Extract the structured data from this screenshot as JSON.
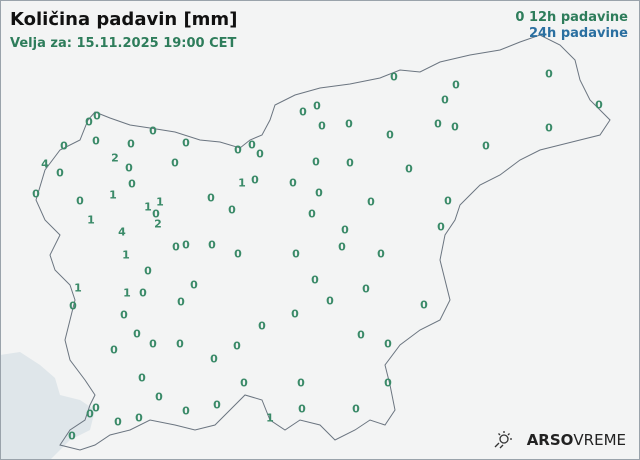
{
  "header": {
    "title": "Količina padavin [mm]",
    "valid_for": "Velja za: 15.11.2025 19:00 CET"
  },
  "legend": {
    "marker": "0",
    "item_12h": "12h padavine",
    "item_24h": "24h padavine",
    "color_12h": "#2e7d5b",
    "color_24h": "#2a6fa0"
  },
  "stations": [
    "0",
    "0",
    "0",
    "0",
    "0",
    "0",
    "0",
    "2",
    "4",
    "0",
    "0",
    "0",
    "0",
    "0",
    "0",
    "0",
    "0",
    "1",
    "0",
    "1",
    "1",
    "1",
    "0",
    "2",
    "4",
    "1",
    "0",
    "0",
    "0",
    "0",
    "0",
    "0",
    "0",
    "1",
    "0",
    "0",
    "0",
    "0",
    "0",
    "0",
    "0",
    "0",
    "0",
    "0",
    "0",
    "0",
    "0",
    "0",
    "0",
    "0",
    "0",
    "0",
    "0",
    "0",
    "0",
    "0",
    "0",
    "0",
    "0",
    "0",
    "0",
    "0",
    "0",
    "0",
    "0",
    "0",
    "0",
    "0",
    "0",
    "0",
    "1",
    "1",
    "0",
    "0",
    "0",
    "0",
    "0",
    "0",
    "0",
    "0",
    "0",
    "0",
    "0",
    "0",
    "0",
    "0",
    "0",
    "0",
    "0",
    "0",
    "0",
    "0",
    "0",
    "0",
    "0",
    "0",
    "0",
    "0",
    "1",
    "0",
    "0",
    "0",
    "0"
  ],
  "branding": {
    "logo_bold": "ARSO",
    "logo_light": "VREME",
    "icon": "weather-sun-rain-icon"
  },
  "colors": {
    "sea": "#dfe6ea",
    "land": "#f3f4f4",
    "border": "#6b7580",
    "values": "#3a8a68"
  }
}
